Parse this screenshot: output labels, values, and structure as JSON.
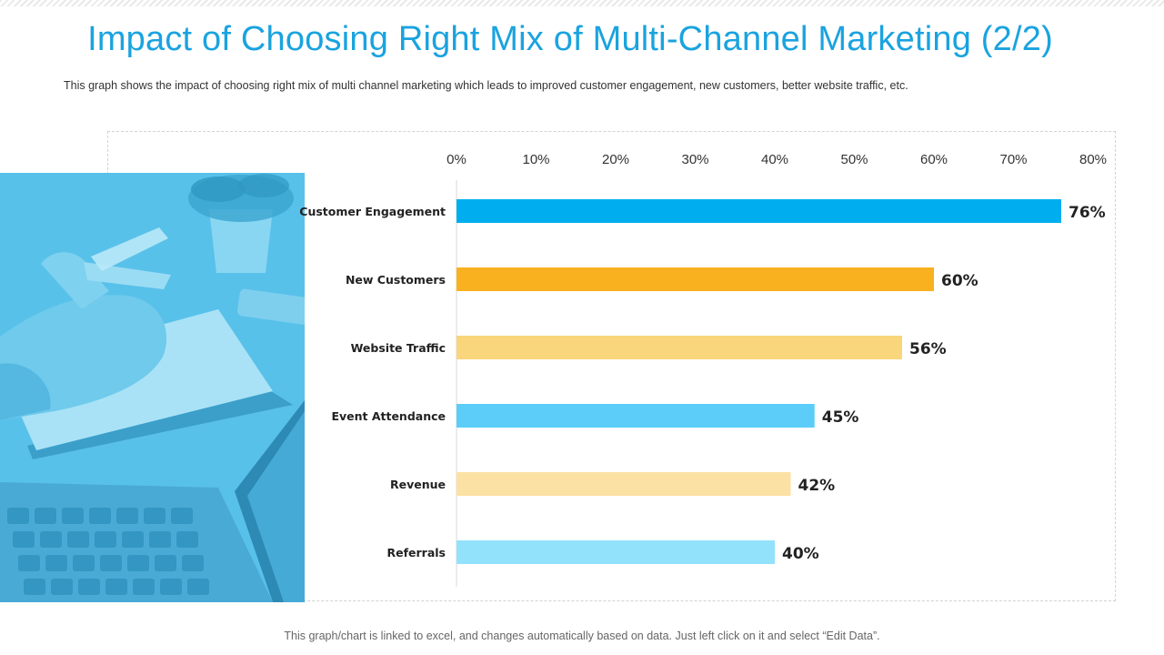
{
  "slide": {
    "title": "Impact of Choosing Right Mix of Multi-Channel Marketing (2/2)",
    "subtitle": "This graph shows the impact of choosing right mix of multi channel marketing which leads to improved  customer engagement, new customers, better website traffic, etc.",
    "footnote": "This graph/chart is linked to excel, and changes automatically based on data. Just left click on it and select “Edit Data”."
  },
  "colors": {
    "title": "#1aa3df",
    "photo_tint": "#58c1ea"
  },
  "chart_data": {
    "type": "bar",
    "orientation": "horizontal",
    "title": "",
    "xlabel": "",
    "ylabel": "",
    "x_axis_position": "top",
    "xlim": [
      0,
      80
    ],
    "ticks": [
      0,
      10,
      20,
      30,
      40,
      50,
      60,
      70,
      80
    ],
    "tick_labels": [
      "0%",
      "10%",
      "20%",
      "30%",
      "40%",
      "50%",
      "60%",
      "70%",
      "80%"
    ],
    "grid": false,
    "categories": [
      "Customer Engagement",
      "New Customers",
      "Website Traffic",
      "Event Attendance",
      "Revenue",
      "Referrals"
    ],
    "values": [
      76,
      60,
      56,
      45,
      42,
      40
    ],
    "value_labels": [
      "76%",
      "60%",
      "56%",
      "45%",
      "42%",
      "40%"
    ],
    "bar_colors": [
      "#00aeef",
      "#f9b120",
      "#f9d57b",
      "#5bcdf8",
      "#fbe1a4",
      "#93e2fb"
    ]
  }
}
